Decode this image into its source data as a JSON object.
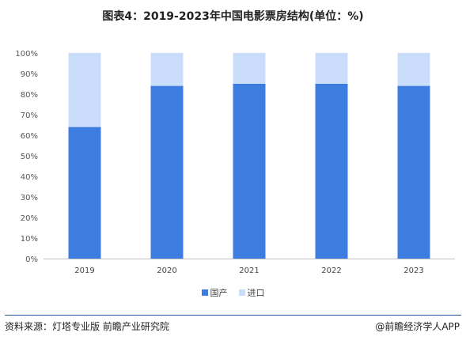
{
  "title": "图表4：2019-2023年中国电影票房结构(单位：%)",
  "chart_data": {
    "type": "bar",
    "stacked": true,
    "categories": [
      "2019",
      "2020",
      "2021",
      "2022",
      "2023"
    ],
    "series": [
      {
        "name": "国产",
        "color": "#3d7de0",
        "values": [
          64,
          84,
          85,
          85,
          84
        ]
      },
      {
        "name": "进口",
        "color": "#c9ddfa",
        "values": [
          36,
          16,
          15,
          15,
          16
        ]
      }
    ],
    "yticks": [
      "0%",
      "10%",
      "20%",
      "30%",
      "40%",
      "50%",
      "60%",
      "70%",
      "80%",
      "90%",
      "100%"
    ],
    "ylim": [
      0,
      100
    ],
    "grid": false,
    "legend": "bottom"
  },
  "footer": {
    "source": "资料来源：灯塔专业版 前瞻产业研究院",
    "brand": "@前瞻经济学人APP"
  }
}
